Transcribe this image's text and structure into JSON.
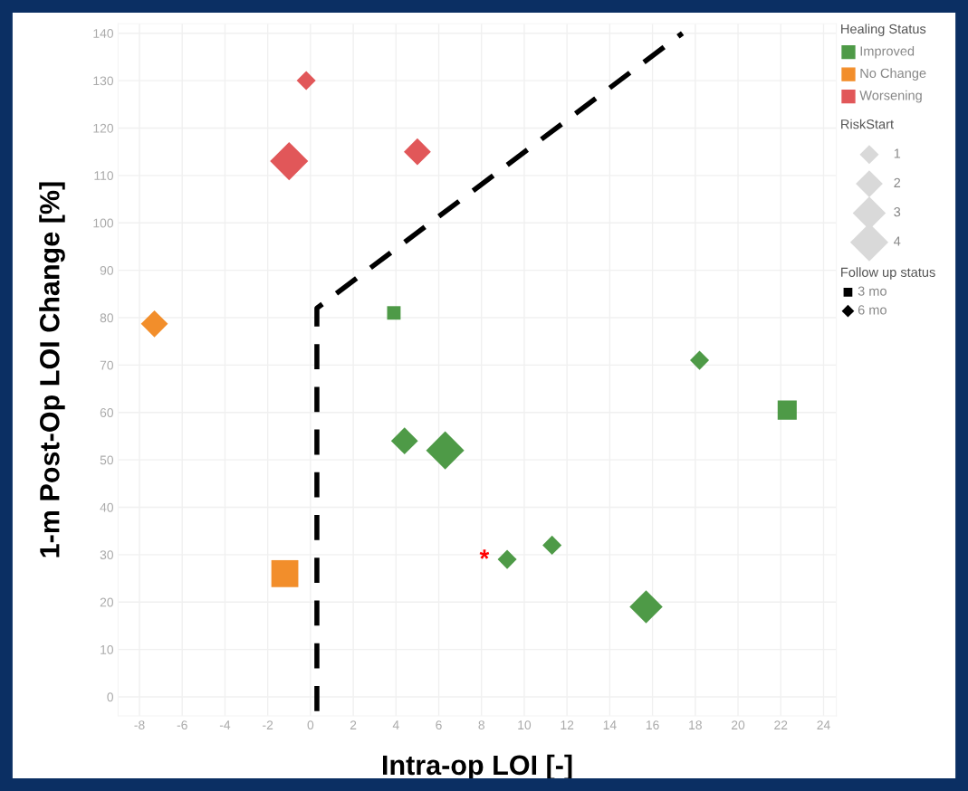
{
  "chart_data": {
    "type": "bubble",
    "xlabel": "Intra-op LOI [-]",
    "ylabel": "1-m Post-Op LOI Change [%]",
    "xlim": [
      -9,
      24.6
    ],
    "ylim": [
      -4,
      142
    ],
    "xticks": [
      -8,
      -6,
      -4,
      -2,
      0,
      2,
      4,
      6,
      8,
      10,
      12,
      14,
      16,
      18,
      20,
      22,
      24
    ],
    "yticks": [
      0,
      10,
      20,
      30,
      40,
      50,
      60,
      70,
      80,
      90,
      100,
      110,
      120,
      130,
      140
    ],
    "grid": true,
    "legend": "top right",
    "legend_title": [
      "Healing Status",
      "RiskStart",
      "Follow up status"
    ],
    "size_legend": [
      1,
      2,
      3,
      4
    ],
    "series": [
      {
        "name": "Improved",
        "color": "#4e9a47",
        "marker": "square",
        "x": [
          3.9,
          22.3
        ],
        "values": [
          81,
          60.5
        ],
        "sizes": [
          1,
          2
        ]
      },
      {
        "color": "#4e9a47",
        "marker": "diamond",
        "x": [
          18.2,
          4.4,
          6.3,
          9.2,
          11.3,
          15.7
        ],
        "values": [
          71,
          54,
          52,
          29,
          32,
          19
        ],
        "sizes": [
          1,
          2,
          4,
          1,
          1,
          3
        ]
      },
      {
        "name": "No Change",
        "color": "#f28e2b",
        "marker": "square",
        "x": [
          -1.2
        ],
        "values": [
          26
        ],
        "sizes": [
          4
        ]
      },
      {
        "color": "#f28e2b",
        "marker": "diamond",
        "x": [
          -7.3
        ],
        "values": [
          78.7
        ],
        "sizes": [
          2
        ]
      },
      {
        "name": "Worsening",
        "color": "#e15759",
        "marker": "diamond",
        "x": [
          -0.2,
          -1.0,
          5.0
        ],
        "values": [
          130,
          113,
          115
        ],
        "sizes": [
          1,
          4,
          2
        ]
      },
      {
        "type": "line",
        "color": "#000000",
        "line_style": "dashed",
        "marker": "none",
        "x": [
          0.3,
          0.3,
          17.4
        ],
        "values": [
          -3,
          82,
          140
        ]
      }
    ],
    "annotations": [
      {
        "text": "*",
        "x": 9.2,
        "y": 29
      },
      "3 mo",
      "6 mo"
    ]
  }
}
